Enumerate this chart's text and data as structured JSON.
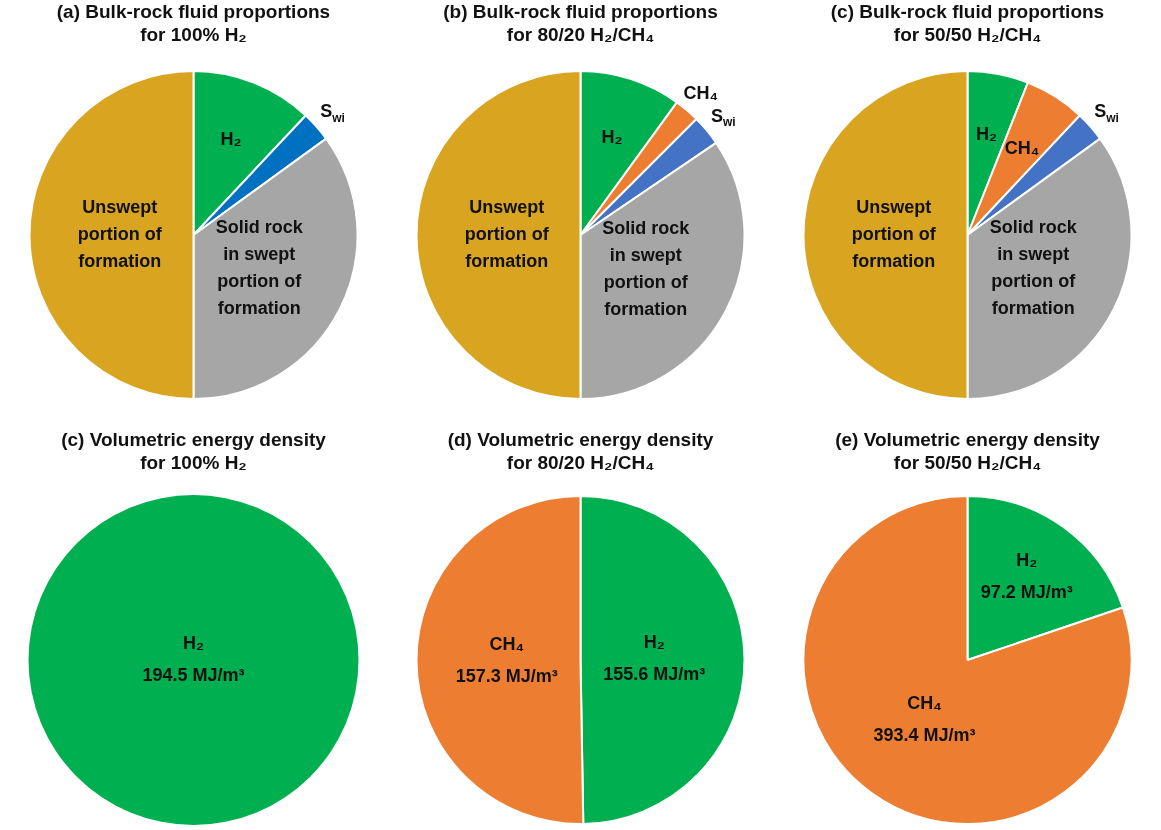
{
  "chart_data": [
    {
      "type": "pie",
      "title": "(a) Bulk-rock fluid proportions\nfor 100% H₂",
      "categories": [
        "H₂",
        "S$_{wi}$",
        "Solid rock\nin swept\nportion of\nformation",
        "Unswept\nportion of\nformation"
      ],
      "values": [
        12,
        3,
        35,
        50
      ],
      "colors": [
        "#00b050",
        "#0070c0",
        "#a6a6a6",
        "#d9a520"
      ]
    },
    {
      "type": "pie",
      "title": "(b) Bulk-rock fluid proportions\nfor 80/20 H₂/CH₄",
      "categories": [
        "H₂",
        "CH₄",
        "S$_{wi}$",
        "Solid rock\nin swept\nportion of\nformation",
        "Unswept\nportion of\nformation"
      ],
      "values": [
        10,
        2.5,
        3,
        34.5,
        50
      ],
      "colors": [
        "#00b050",
        "#ed7d31",
        "#4472c4",
        "#a6a6a6",
        "#d9a520"
      ]
    },
    {
      "type": "pie",
      "title": "(c) Bulk-rock fluid proportions\nfor 50/50 H₂/CH₄",
      "categories": [
        "H₂",
        "CH₄",
        "S$_{wi}$",
        "Solid rock\nin swept\nportion of\nformation",
        "Unswept\nportion of\nformation"
      ],
      "values": [
        6,
        6,
        3,
        35,
        50
      ],
      "colors": [
        "#00b050",
        "#ed7d31",
        "#4472c4",
        "#a6a6a6",
        "#d9a520"
      ]
    },
    {
      "type": "pie",
      "title": "(c) Volumetric energy density\nfor 100% H₂",
      "categories": [
        "H₂"
      ],
      "values": [
        194.5
      ],
      "colors": [
        "#00b050"
      ],
      "value_labels": [
        "194.5 MJ/m³"
      ]
    },
    {
      "type": "pie",
      "title": "(d) Volumetric energy density\nfor 80/20 H₂/CH₄",
      "categories": [
        "H₂",
        "CH₄"
      ],
      "values": [
        155.6,
        157.3
      ],
      "colors": [
        "#00b050",
        "#ed7d31"
      ],
      "value_labels": [
        "155.6 MJ/m³",
        "157.3 MJ/m³"
      ]
    },
    {
      "type": "pie",
      "title": "(e) Volumetric energy density\nfor 50/50 H₂/CH₄",
      "categories": [
        "H₂",
        "CH₄"
      ],
      "values": [
        97.2,
        393.4
      ],
      "colors": [
        "#00b050",
        "#ed7d31"
      ],
      "value_labels": [
        "97.2 MJ/m³",
        "393.4 MJ/m³"
      ]
    }
  ]
}
